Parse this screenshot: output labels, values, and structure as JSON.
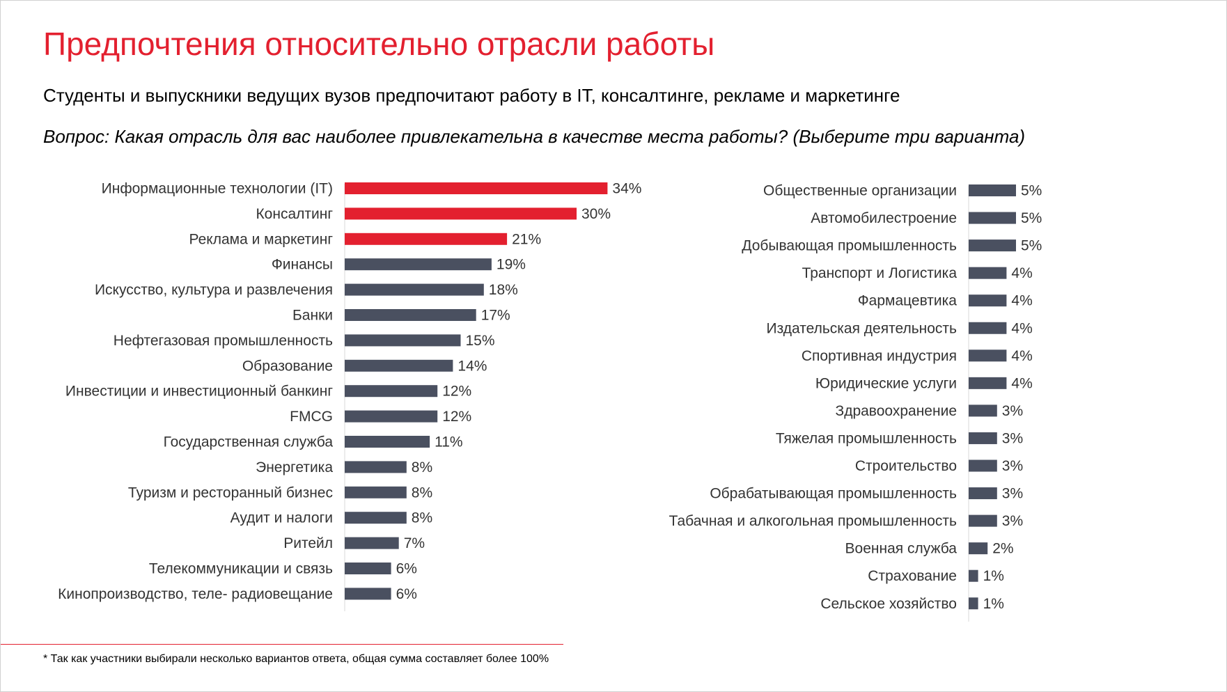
{
  "title": "Предпочтения относительно отрасли работы",
  "subtitle": "Студенты и выпускники ведущих вузов предпочитают работу в IT, консалтинге, рекламе и маркетинге",
  "question": "Вопрос: Какая отрасль для вас наиболее привлекательна в качестве места работы? (Выберите три варианта)",
  "footnote": "* Так как участники выбирали несколько вариантов ответа, общая сумма составляет более 100%",
  "colors": {
    "accent": "#e3202f",
    "bar": "#4a5060",
    "text": "#333333",
    "axis": "#d9d9d9"
  },
  "chart_data": [
    {
      "type": "bar",
      "orientation": "horizontal",
      "value_format": "percent",
      "categories": [
        "Информационные технологии (IT)",
        "Консалтинг",
        "Реклама и маркетинг",
        "Финансы",
        "Искусство, культура и развлечения",
        "Банки",
        "Нефтегазовая промышленность",
        "Образование",
        "Инвестиции и инвестиционный банкинг",
        "FMCG",
        "Государственная служба",
        "Энергетика",
        "Туризм и ресторанный бизнес",
        "Аудит и налоги",
        "Ритейл",
        "Телекоммуникации и связь",
        "Кинопроизводство, теле- радиовещание"
      ],
      "values": [
        34,
        30,
        21,
        19,
        18,
        17,
        15,
        14,
        12,
        12,
        11,
        8,
        8,
        8,
        7,
        6,
        6
      ],
      "highlighted": [
        0,
        1,
        2
      ]
    },
    {
      "type": "bar",
      "orientation": "horizontal",
      "value_format": "percent",
      "categories": [
        "Общественные организации",
        "Автомобилестроение",
        "Добывающая промышленность",
        "Транспорт и Логистика",
        "Фармацевтика",
        "Издательская деятельность",
        "Спортивная индустрия",
        "Юридические услуги",
        "Здравоохранение",
        "Тяжелая промышленность",
        "Строительство",
        "Обрабатывающая промышленность",
        "Табачная и алкогольная промышленность",
        "Военная служба",
        "Страхование",
        "Сельское хозяйство"
      ],
      "values": [
        5,
        5,
        5,
        4,
        4,
        4,
        4,
        4,
        3,
        3,
        3,
        3,
        3,
        2,
        1,
        1
      ],
      "highlighted": []
    }
  ]
}
